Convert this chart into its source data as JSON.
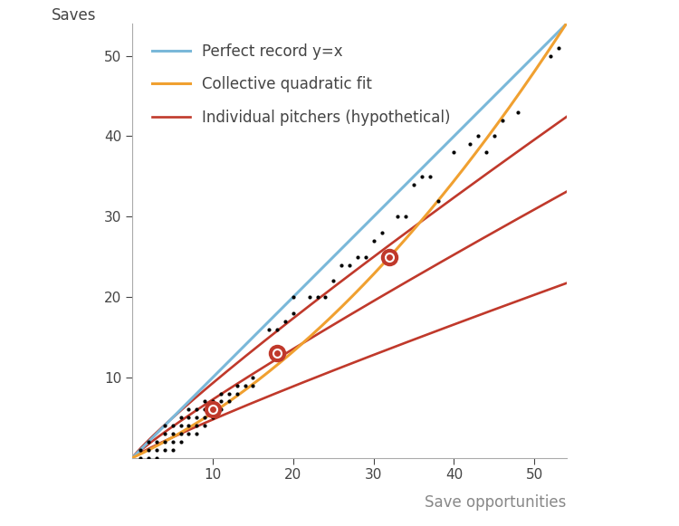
{
  "title": "",
  "xlabel": "Save opportunities",
  "ylabel": "Saves",
  "xlim": [
    0,
    54
  ],
  "ylim": [
    0,
    54
  ],
  "xticks": [
    10,
    20,
    30,
    40,
    50
  ],
  "yticks": [
    10,
    20,
    30,
    40,
    50
  ],
  "background_color": "#ffffff",
  "blue_line_color": "#7ab8d9",
  "orange_line_color": "#f0a030",
  "red_line_color": "#c0392b",
  "legend_entries": [
    "Perfect record y=x",
    "Collective quadratic fit",
    "Individual pitchers (hypothetical)"
  ],
  "highlight_points": [
    [
      10,
      6
    ],
    [
      18,
      13
    ],
    [
      32,
      25
    ]
  ],
  "scatter_points": [
    [
      1,
      0
    ],
    [
      1,
      1
    ],
    [
      2,
      0
    ],
    [
      2,
      1
    ],
    [
      2,
      2
    ],
    [
      3,
      0
    ],
    [
      3,
      1
    ],
    [
      3,
      2
    ],
    [
      4,
      1
    ],
    [
      4,
      2
    ],
    [
      4,
      3
    ],
    [
      4,
      4
    ],
    [
      5,
      1
    ],
    [
      5,
      2
    ],
    [
      5,
      3
    ],
    [
      5,
      4
    ],
    [
      6,
      2
    ],
    [
      6,
      3
    ],
    [
      6,
      4
    ],
    [
      6,
      5
    ],
    [
      7,
      3
    ],
    [
      7,
      4
    ],
    [
      7,
      5
    ],
    [
      7,
      6
    ],
    [
      8,
      3
    ],
    [
      8,
      4
    ],
    [
      8,
      5
    ],
    [
      8,
      6
    ],
    [
      9,
      4
    ],
    [
      9,
      5
    ],
    [
      9,
      6
    ],
    [
      9,
      7
    ],
    [
      10,
      5
    ],
    [
      10,
      6
    ],
    [
      10,
      7
    ],
    [
      11,
      6
    ],
    [
      11,
      7
    ],
    [
      11,
      8
    ],
    [
      12,
      7
    ],
    [
      12,
      8
    ],
    [
      13,
      8
    ],
    [
      13,
      9
    ],
    [
      14,
      9
    ],
    [
      15,
      9
    ],
    [
      15,
      10
    ],
    [
      17,
      16
    ],
    [
      18,
      13
    ],
    [
      18,
      16
    ],
    [
      19,
      17
    ],
    [
      20,
      18
    ],
    [
      20,
      20
    ],
    [
      22,
      20
    ],
    [
      23,
      20
    ],
    [
      24,
      20
    ],
    [
      25,
      22
    ],
    [
      26,
      24
    ],
    [
      27,
      24
    ],
    [
      28,
      25
    ],
    [
      29,
      25
    ],
    [
      30,
      27
    ],
    [
      31,
      28
    ],
    [
      32,
      25
    ],
    [
      33,
      30
    ],
    [
      34,
      30
    ],
    [
      35,
      34
    ],
    [
      36,
      35
    ],
    [
      37,
      35
    ],
    [
      38,
      32
    ],
    [
      40,
      38
    ],
    [
      42,
      39
    ],
    [
      43,
      40
    ],
    [
      44,
      38
    ],
    [
      45,
      40
    ],
    [
      46,
      42
    ],
    [
      48,
      43
    ],
    [
      52,
      50
    ],
    [
      53,
      51
    ]
  ],
  "quad_a": 0.012,
  "quad_b": 0.48,
  "pitcher_coeffs": [
    {
      "c": 1.05,
      "p": 0.88
    },
    {
      "c": 0.8,
      "p": 0.88
    },
    {
      "c": 0.52,
      "p": 0.88
    }
  ]
}
